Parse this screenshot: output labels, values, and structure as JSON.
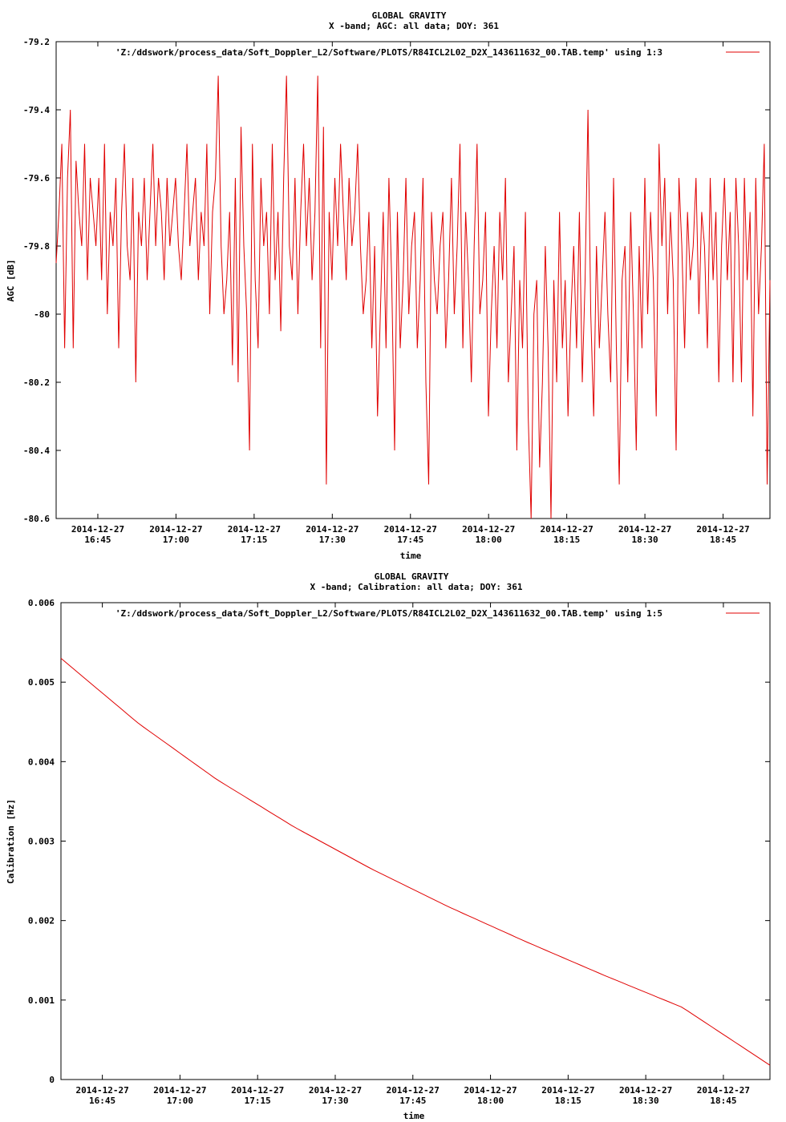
{
  "chart_data": [
    {
      "type": "line",
      "title": "GLOBAL GRAVITY",
      "subtitle": "X -band; AGC: all data; DOY: 361",
      "xlabel": "time",
      "ylabel": "AGC [dB]",
      "ylim": [
        -80.6,
        -79.2
      ],
      "yticks": [
        -79.2,
        -79.4,
        -79.6,
        -79.8,
        -80,
        -80.2,
        -80.4,
        -80.6
      ],
      "ytick_labels": [
        "-79.2",
        "-79.4",
        "-79.6",
        "-79.8",
        "-80",
        "-80.2",
        "-80.4",
        "-80.6"
      ],
      "xlim": [
        "16:37",
        "18:54"
      ],
      "xticks": [
        "16:45",
        "17:00",
        "17:15",
        "17:30",
        "17:45",
        "18:00",
        "18:15",
        "18:30",
        "18:45"
      ],
      "xtick_date": "2014-12-27",
      "legend": "'Z:/ddswork/process_data/Soft_Doppler_L2/Software/PLOTS/R84ICL2L02_D2X_143611632_00.TAB.temp' using 1:3",
      "legend_position": "top-right",
      "grid": false,
      "series": [
        {
          "color": "#e00000",
          "x_start": "16:37",
          "x_end": "18:54",
          "y": [
            -79.85,
            -79.7,
            -79.5,
            -80.1,
            -79.6,
            -79.4,
            -80.1,
            -79.55,
            -79.7,
            -79.8,
            -79.5,
            -79.9,
            -79.6,
            -79.7,
            -79.8,
            -79.6,
            -79.9,
            -79.5,
            -80.0,
            -79.7,
            -79.8,
            -79.6,
            -80.1,
            -79.7,
            -79.5,
            -79.8,
            -79.9,
            -79.6,
            -80.2,
            -79.7,
            -79.8,
            -79.6,
            -79.9,
            -79.7,
            -79.5,
            -79.8,
            -79.6,
            -79.7,
            -79.9,
            -79.6,
            -79.8,
            -79.7,
            -79.6,
            -79.8,
            -79.9,
            -79.7,
            -79.5,
            -79.8,
            -79.7,
            -79.6,
            -79.9,
            -79.7,
            -79.8,
            -79.5,
            -80.0,
            -79.7,
            -79.6,
            -79.3,
            -79.8,
            -80.0,
            -79.9,
            -79.7,
            -80.15,
            -79.6,
            -80.2,
            -79.45,
            -79.8,
            -80.0,
            -80.4,
            -79.5,
            -79.9,
            -80.1,
            -79.6,
            -79.8,
            -79.7,
            -80.0,
            -79.5,
            -79.9,
            -79.7,
            -80.05,
            -79.6,
            -79.3,
            -79.8,
            -79.9,
            -79.6,
            -80.0,
            -79.7,
            -79.5,
            -79.8,
            -79.6,
            -79.9,
            -79.7,
            -79.3,
            -80.1,
            -79.45,
            -80.5,
            -79.7,
            -79.9,
            -79.6,
            -79.8,
            -79.5,
            -79.7,
            -79.9,
            -79.6,
            -79.8,
            -79.7,
            -79.5,
            -79.8,
            -80.0,
            -79.9,
            -79.7,
            -80.1,
            -79.8,
            -80.3,
            -80.0,
            -79.7,
            -80.1,
            -79.6,
            -79.9,
            -80.4,
            -79.7,
            -80.1,
            -79.9,
            -79.6,
            -80.0,
            -79.8,
            -79.7,
            -80.1,
            -79.9,
            -79.6,
            -80.2,
            -80.5,
            -79.7,
            -79.9,
            -80.0,
            -79.8,
            -79.7,
            -80.1,
            -79.9,
            -79.6,
            -80.0,
            -79.8,
            -79.5,
            -80.1,
            -79.7,
            -79.9,
            -80.2,
            -79.8,
            -79.5,
            -80.0,
            -79.9,
            -79.7,
            -80.3,
            -80.0,
            -79.8,
            -80.1,
            -79.7,
            -79.9,
            -79.6,
            -80.2,
            -80.0,
            -79.8,
            -80.4,
            -79.9,
            -80.1,
            -79.7,
            -80.3,
            -80.6,
            -80.0,
            -79.9,
            -80.45,
            -80.2,
            -79.8,
            -80.1,
            -80.6,
            -79.9,
            -80.2,
            -79.7,
            -80.1,
            -79.9,
            -80.3,
            -80.0,
            -79.8,
            -80.1,
            -79.7,
            -80.2,
            -79.9,
            -79.4,
            -80.0,
            -80.3,
            -79.8,
            -80.1,
            -79.9,
            -79.7,
            -80.0,
            -80.2,
            -79.6,
            -80.1,
            -80.5,
            -79.9,
            -79.8,
            -80.2,
            -79.7,
            -80.0,
            -80.4,
            -79.8,
            -80.1,
            -79.6,
            -80.0,
            -79.7,
            -79.9,
            -80.3,
            -79.5,
            -79.8,
            -79.6,
            -80.0,
            -79.7,
            -79.9,
            -80.4,
            -79.6,
            -79.8,
            -80.1,
            -79.7,
            -79.9,
            -79.8,
            -79.6,
            -80.0,
            -79.7,
            -79.8,
            -80.1,
            -79.6,
            -79.9,
            -79.7,
            -80.2,
            -79.8,
            -79.6,
            -79.9,
            -79.7,
            -80.2,
            -79.6,
            -79.8,
            -80.2,
            -79.6,
            -79.9,
            -79.7,
            -80.3,
            -79.6,
            -80.0,
            -79.8,
            -79.5,
            -80.5,
            -79.9
          ]
        }
      ]
    },
    {
      "type": "line",
      "title": "GLOBAL GRAVITY",
      "subtitle": "X -band; Calibration: all data; DOY: 361",
      "xlabel": "time",
      "ylabel": "Calibration [Hz]",
      "ylim": [
        0,
        0.006
      ],
      "yticks": [
        0,
        0.001,
        0.002,
        0.003,
        0.004,
        0.005,
        0.006
      ],
      "ytick_labels": [
        "0",
        "0.001",
        "0.002",
        "0.003",
        "0.004",
        "0.005",
        "0.006"
      ],
      "xlim": [
        "16:37",
        "18:54"
      ],
      "xticks": [
        "16:45",
        "17:00",
        "17:15",
        "17:30",
        "17:45",
        "18:00",
        "18:15",
        "18:30",
        "18:45"
      ],
      "xtick_date": "2014-12-27",
      "legend": "'Z:/ddswork/process_data/Soft_Doppler_L2/Software/PLOTS/R84ICL2L02_D2X_143611632_00.TAB.temp' using 1:5",
      "legend_position": "top-right",
      "grid": false,
      "series": [
        {
          "color": "#e00000",
          "x": [
            "16:37",
            "16:52",
            "17:07",
            "17:22",
            "17:37",
            "17:52",
            "18:07",
            "18:22",
            "18:37",
            "18:54"
          ],
          "y": [
            0.0053,
            0.00448,
            0.00378,
            0.00318,
            0.00265,
            0.00217,
            0.00173,
            0.00131,
            0.00091,
            0.00018
          ]
        }
      ]
    }
  ]
}
